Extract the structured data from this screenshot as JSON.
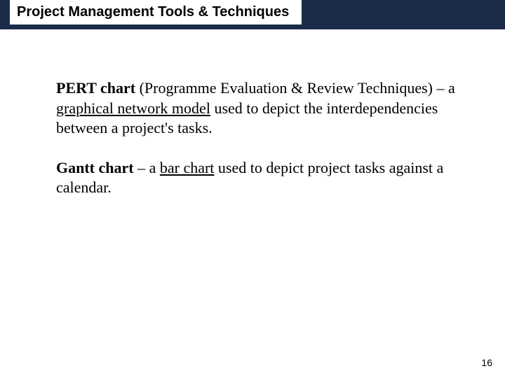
{
  "slide": {
    "title": "Project Management Tools & Techniques",
    "header_bg": "#1b2c4a",
    "title_box_bg": "#ffffff",
    "title_fontsize": 20,
    "body_fontsize": 22,
    "page_number": "16"
  },
  "definitions": {
    "pert": {
      "term": "PERT chart",
      "expansion_prefix": "(Programme Evaluation & Review Techniques) – a ",
      "underlined": "graphical network model",
      "suffix": " used to depict the interdependencies between a project's tasks."
    },
    "gantt": {
      "term": "Gantt chart",
      "expansion_prefix": "  – a ",
      "underlined": "bar chart",
      "suffix": " used to depict project tasks against a calendar."
    }
  }
}
